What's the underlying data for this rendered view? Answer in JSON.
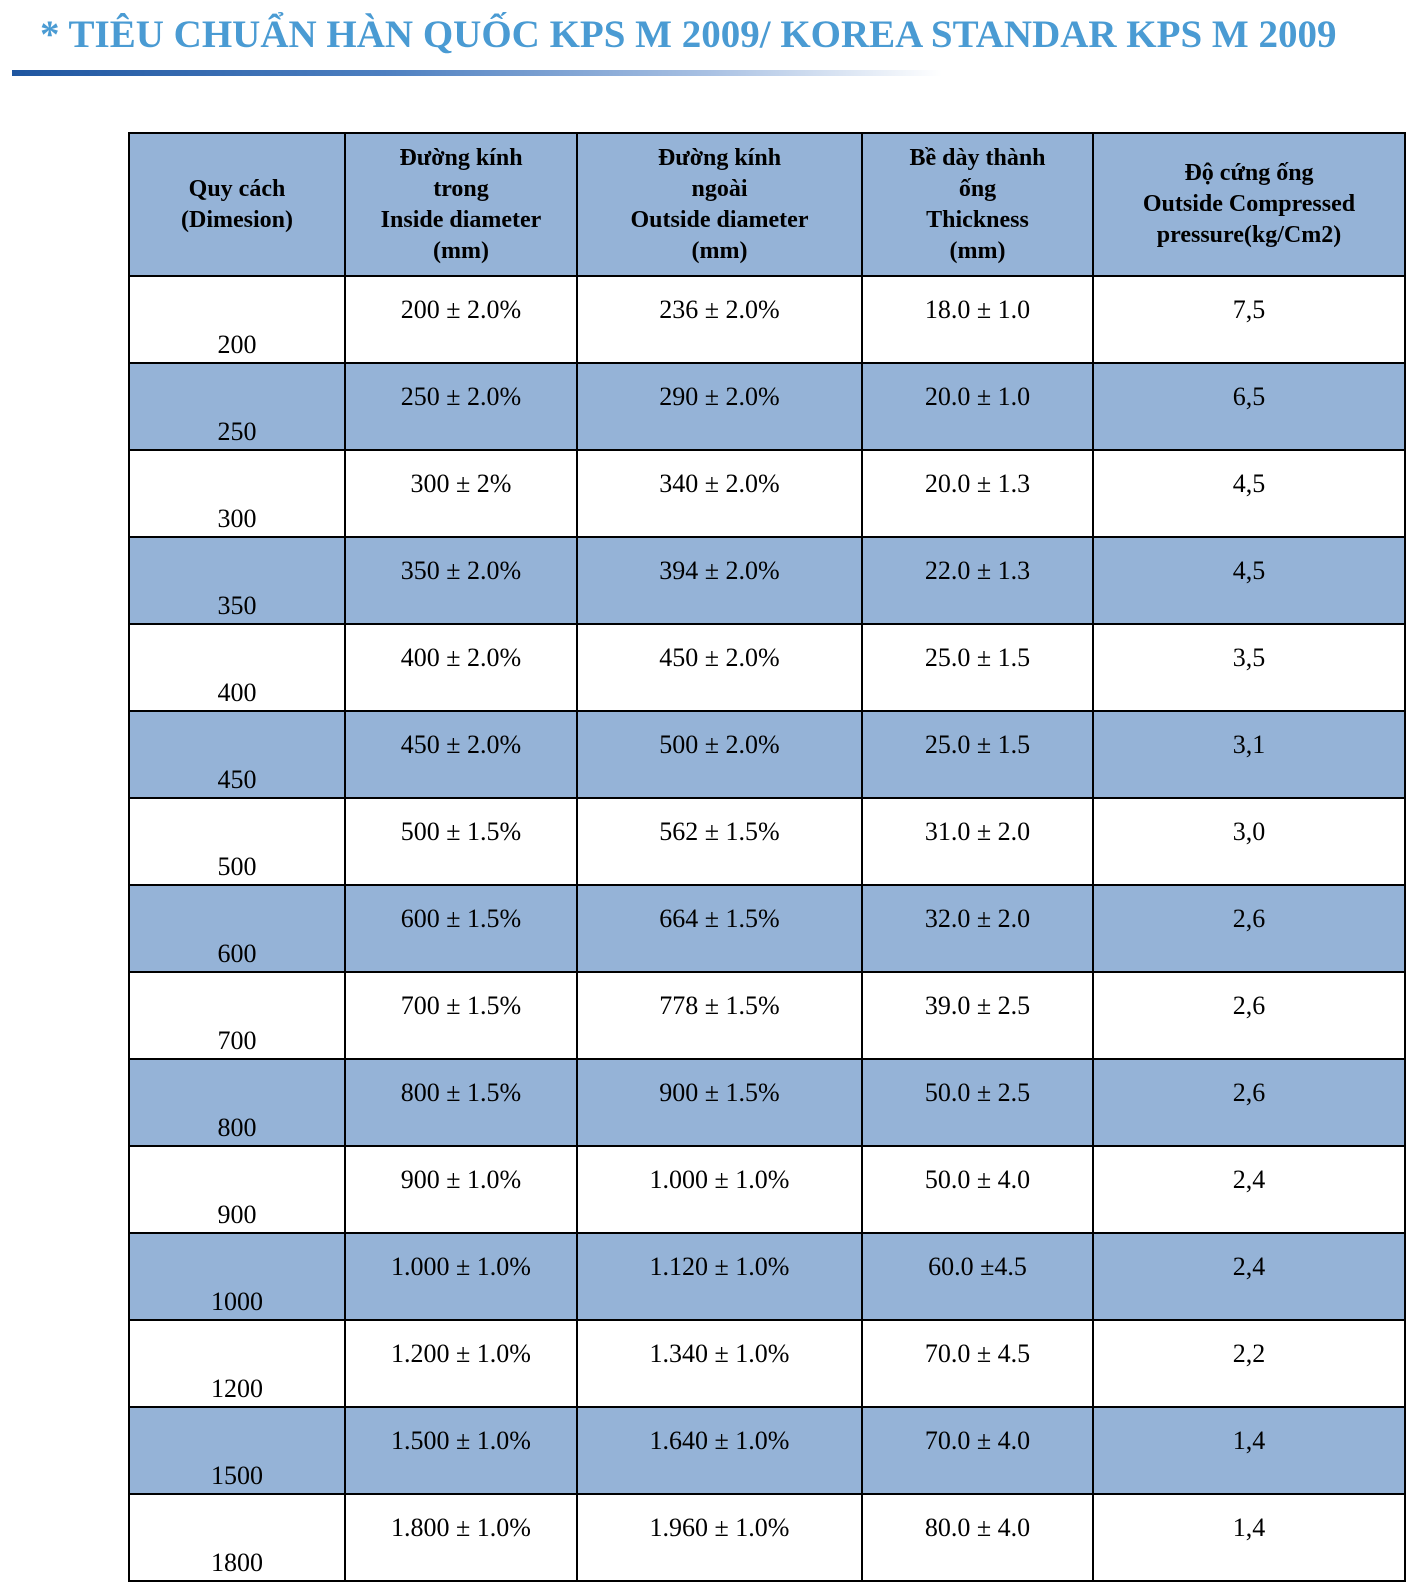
{
  "title": "* TIÊU CHUẨN HÀN QUỐC KPS M 2009/ KOREA STANDAR KPS M 2009",
  "headers": [
    [
      "Quy cách",
      "(Dimesion)"
    ],
    [
      "Đường kính",
      "trong",
      "Inside diameter",
      "(mm)"
    ],
    [
      "Đường kính",
      "ngoài",
      "Outside diameter",
      "(mm)"
    ],
    [
      "Bề dày thành",
      "ống",
      "Thickness",
      "(mm)"
    ],
    [
      "Độ cứng ống",
      "Outside Compressed",
      "pressure(kg/Cm2)"
    ]
  ],
  "rows": [
    [
      "200",
      "200 ± 2.0%",
      "236 ± 2.0%",
      "18.0 ± 1.0",
      "7,5"
    ],
    [
      "250",
      "250 ± 2.0%",
      "290 ± 2.0%",
      "20.0 ± 1.0",
      "6,5"
    ],
    [
      "300",
      "300 ± 2%",
      "340 ± 2.0%",
      "20.0 ± 1.3",
      "4,5"
    ],
    [
      "350",
      "350 ± 2.0%",
      "394 ± 2.0%",
      "22.0 ± 1.3",
      "4,5"
    ],
    [
      "400",
      "400 ± 2.0%",
      "450 ± 2.0%",
      "25.0 ± 1.5",
      "3,5"
    ],
    [
      "450",
      "450 ± 2.0%",
      "500 ± 2.0%",
      "25.0 ± 1.5",
      "3,1"
    ],
    [
      "500",
      "500 ± 1.5%",
      "562 ± 1.5%",
      "31.0 ± 2.0",
      "3,0"
    ],
    [
      "600",
      "600 ± 1.5%",
      "664 ± 1.5%",
      "32.0 ± 2.0",
      "2,6"
    ],
    [
      "700",
      "700 ± 1.5%",
      "778 ± 1.5%",
      "39.0 ± 2.5",
      "2,6"
    ],
    [
      "800",
      "800 ± 1.5%",
      "900 ± 1.5%",
      "50.0 ± 2.5",
      "2,6"
    ],
    [
      "900",
      "900 ± 1.0%",
      "1.000 ± 1.0%",
      "50.0 ± 4.0",
      "2,4"
    ],
    [
      "1000",
      "1.000 ± 1.0%",
      "1.120 ± 1.0%",
      "60.0 ±4.5",
      "2,4"
    ],
    [
      "1200",
      "1.200 ± 1.0%",
      "1.340 ± 1.0%",
      "70.0 ± 4.5",
      "2,2"
    ],
    [
      "1500",
      "1.500 ± 1.0%",
      "1.640 ± 1.0%",
      "70.0 ± 4.0",
      "1,4"
    ],
    [
      "1800",
      "1.800 ± 1.0%",
      "1.960 ± 1.0%",
      "80.0 ± 4.0",
      "1,4"
    ]
  ],
  "colors": {
    "title": "#4a9bd3",
    "band": "#95b3d7"
  }
}
